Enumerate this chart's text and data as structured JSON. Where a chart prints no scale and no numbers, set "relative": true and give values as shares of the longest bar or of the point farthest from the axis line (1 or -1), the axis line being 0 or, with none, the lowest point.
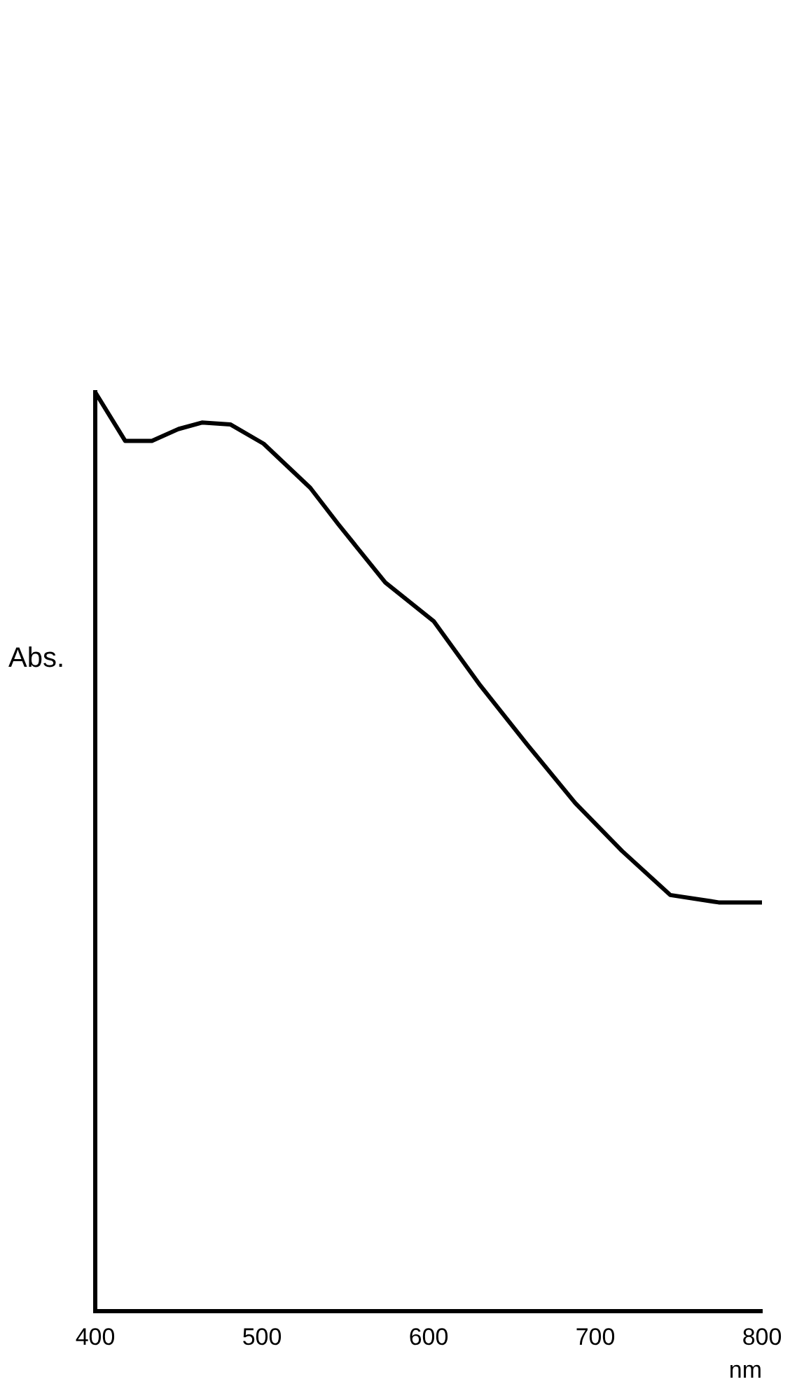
{
  "chart_data": {
    "type": "line",
    "xlabel": "nm",
    "ylabel": "Abs.",
    "relative": true,
    "xlim": [
      400,
      800
    ],
    "xticks": [
      400,
      500,
      600,
      700,
      800
    ],
    "grid": false,
    "legend": false,
    "marker": "none",
    "line_style": "solid",
    "series": [
      {
        "color": "#000000",
        "x": [
          400,
          418,
          434,
          450,
          464,
          481,
          501,
          529,
          546,
          574,
          603,
          631,
          659,
          688,
          716,
          745,
          774,
          800
        ],
        "values": [
          1.0,
          0.947,
          0.947,
          0.96,
          0.967,
          0.965,
          0.944,
          0.896,
          0.856,
          0.793,
          0.751,
          0.681,
          0.617,
          0.553,
          0.501,
          0.453,
          0.445,
          0.445
        ]
      }
    ]
  }
}
